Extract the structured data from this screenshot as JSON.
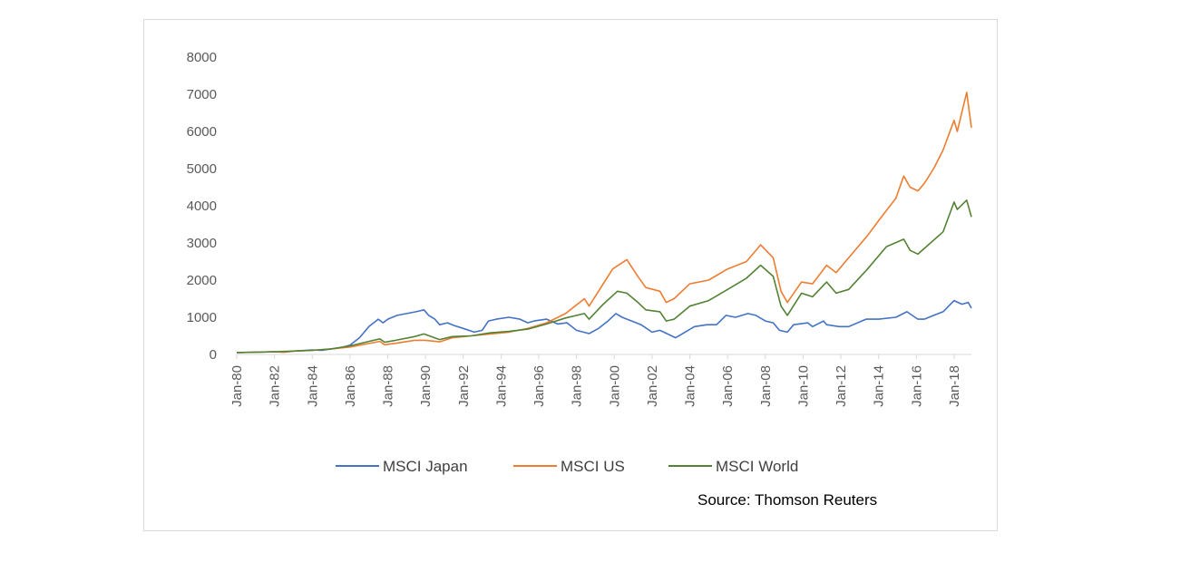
{
  "chart_data": {
    "type": "line",
    "title": "",
    "xlabel": "",
    "ylabel": "",
    "ylim": [
      0,
      8000
    ],
    "xlim": [
      "1980-01",
      "2018-12"
    ],
    "yticks": [
      0,
      1000,
      2000,
      3000,
      4000,
      5000,
      6000,
      7000,
      8000
    ],
    "ytick_labels": [
      "0",
      "1000",
      "2000",
      "3000",
      "4000",
      "5000",
      "6000",
      "7000",
      "8000"
    ],
    "xticks": [
      "1980-01",
      "1982-01",
      "1984-01",
      "1986-01",
      "1988-01",
      "1990-01",
      "1992-01",
      "1994-01",
      "1996-01",
      "1998-01",
      "2000-01",
      "2002-01",
      "2004-01",
      "2006-01",
      "2008-01",
      "2010-01",
      "2012-01",
      "2014-01",
      "2016-01",
      "2018-01"
    ],
    "xtick_labels": [
      "Jan-80",
      "Jan-82",
      "Jan-84",
      "Jan-86",
      "Jan-88",
      "Jan-90",
      "Jan-92",
      "Jan-94",
      "Jan-96",
      "Jan-98",
      "Jan-00",
      "Jan-02",
      "Jan-04",
      "Jan-06",
      "Jan-08",
      "Jan-10",
      "Jan-12",
      "Jan-14",
      "Jan-16",
      "Jan-18"
    ],
    "grid": false,
    "legend_position": "bottom",
    "source": "Source: Thomson Reuters",
    "series": [
      {
        "name": "MSCI Japan",
        "color": "#4472c4",
        "points": [
          [
            "1980-01",
            50
          ],
          [
            "1981-01",
            60
          ],
          [
            "1982-01",
            70
          ],
          [
            "1982-07",
            60
          ],
          [
            "1983-01",
            90
          ],
          [
            "1984-01",
            120
          ],
          [
            "1984-07",
            110
          ],
          [
            "1985-01",
            150
          ],
          [
            "1985-07",
            180
          ],
          [
            "1986-01",
            250
          ],
          [
            "1986-07",
            450
          ],
          [
            "1987-01",
            750
          ],
          [
            "1987-07",
            950
          ],
          [
            "1987-10",
            850
          ],
          [
            "1988-01",
            950
          ],
          [
            "1988-07",
            1050
          ],
          [
            "1989-01",
            1100
          ],
          [
            "1989-07",
            1150
          ],
          [
            "1989-12",
            1200
          ],
          [
            "1990-03",
            1050
          ],
          [
            "1990-07",
            950
          ],
          [
            "1990-10",
            800
          ],
          [
            "1991-03",
            850
          ],
          [
            "1991-07",
            780
          ],
          [
            "1992-01",
            700
          ],
          [
            "1992-08",
            600
          ],
          [
            "1993-01",
            650
          ],
          [
            "1993-05",
            900
          ],
          [
            "1993-10",
            950
          ],
          [
            "1994-06",
            1000
          ],
          [
            "1995-01",
            950
          ],
          [
            "1995-06",
            850
          ],
          [
            "1995-10",
            900
          ],
          [
            "1996-06",
            950
          ],
          [
            "1997-01",
            820
          ],
          [
            "1997-07",
            850
          ],
          [
            "1998-01",
            650
          ],
          [
            "1998-09",
            560
          ],
          [
            "1999-03",
            700
          ],
          [
            "1999-09",
            900
          ],
          [
            "2000-02",
            1100
          ],
          [
            "2000-06",
            1000
          ],
          [
            "2000-12",
            900
          ],
          [
            "2001-06",
            800
          ],
          [
            "2002-01",
            600
          ],
          [
            "2002-06",
            650
          ],
          [
            "2003-04",
            450
          ],
          [
            "2003-10",
            600
          ],
          [
            "2004-04",
            750
          ],
          [
            "2004-12",
            800
          ],
          [
            "2005-06",
            800
          ],
          [
            "2005-12",
            1050
          ],
          [
            "2006-06",
            1000
          ],
          [
            "2007-02",
            1100
          ],
          [
            "2007-07",
            1050
          ],
          [
            "2008-01",
            900
          ],
          [
            "2008-06",
            850
          ],
          [
            "2008-10",
            650
          ],
          [
            "2009-03",
            600
          ],
          [
            "2009-07",
            800
          ],
          [
            "2010-04",
            850
          ],
          [
            "2010-07",
            750
          ],
          [
            "2011-02",
            900
          ],
          [
            "2011-04",
            800
          ],
          [
            "2011-12",
            750
          ],
          [
            "2012-06",
            750
          ],
          [
            "2013-05",
            950
          ],
          [
            "2014-01",
            950
          ],
          [
            "2014-12",
            1000
          ],
          [
            "2015-07",
            1150
          ],
          [
            "2016-02",
            950
          ],
          [
            "2016-06",
            950
          ],
          [
            "2016-12",
            1050
          ],
          [
            "2017-06",
            1150
          ],
          [
            "2018-01",
            1450
          ],
          [
            "2018-06",
            1350
          ],
          [
            "2018-10",
            1400
          ],
          [
            "2018-12",
            1250
          ]
        ]
      },
      {
        "name": "MSCI US",
        "color": "#ed7d31",
        "points": [
          [
            "1980-01",
            50
          ],
          [
            "1981-01",
            60
          ],
          [
            "1982-01",
            70
          ],
          [
            "1982-08",
            60
          ],
          [
            "1983-01",
            90
          ],
          [
            "1984-01",
            110
          ],
          [
            "1985-01",
            150
          ],
          [
            "1986-01",
            200
          ],
          [
            "1987-08",
            350
          ],
          [
            "1987-11",
            260
          ],
          [
            "1988-06",
            300
          ],
          [
            "1989-06",
            380
          ],
          [
            "1990-01",
            380
          ],
          [
            "1990-10",
            340
          ],
          [
            "1991-06",
            450
          ],
          [
            "1992-06",
            500
          ],
          [
            "1993-06",
            550
          ],
          [
            "1994-06",
            600
          ],
          [
            "1995-06",
            700
          ],
          [
            "1996-06",
            850
          ],
          [
            "1997-06",
            1100
          ],
          [
            "1998-06",
            1500
          ],
          [
            "1998-09",
            1300
          ],
          [
            "1999-06",
            1900
          ],
          [
            "1999-12",
            2300
          ],
          [
            "2000-09",
            2550
          ],
          [
            "2001-04",
            2100
          ],
          [
            "2001-09",
            1800
          ],
          [
            "2002-06",
            1700
          ],
          [
            "2002-10",
            1400
          ],
          [
            "2003-03",
            1500
          ],
          [
            "2004-01",
            1900
          ],
          [
            "2005-01",
            2000
          ],
          [
            "2006-01",
            2300
          ],
          [
            "2007-01",
            2500
          ],
          [
            "2007-10",
            2950
          ],
          [
            "2008-06",
            2600
          ],
          [
            "2008-11",
            1700
          ],
          [
            "2009-03",
            1400
          ],
          [
            "2009-12",
            1950
          ],
          [
            "2010-07",
            1900
          ],
          [
            "2011-04",
            2400
          ],
          [
            "2011-10",
            2200
          ],
          [
            "2012-06",
            2600
          ],
          [
            "2013-06",
            3200
          ],
          [
            "2014-01",
            3600
          ],
          [
            "2014-12",
            4200
          ],
          [
            "2015-05",
            4800
          ],
          [
            "2015-09",
            4500
          ],
          [
            "2016-02",
            4400
          ],
          [
            "2016-06",
            4600
          ],
          [
            "2016-12",
            5000
          ],
          [
            "2017-06",
            5500
          ],
          [
            "2018-01",
            6300
          ],
          [
            "2018-03",
            6000
          ],
          [
            "2018-09",
            7050
          ],
          [
            "2018-12",
            6100
          ]
        ]
      },
      {
        "name": "MSCI World",
        "color": "#548235",
        "points": [
          [
            "1980-01",
            50
          ],
          [
            "1981-01",
            60
          ],
          [
            "1982-01",
            70
          ],
          [
            "1983-01",
            90
          ],
          [
            "1984-01",
            110
          ],
          [
            "1985-01",
            150
          ],
          [
            "1986-01",
            230
          ],
          [
            "1987-01",
            350
          ],
          [
            "1987-08",
            420
          ],
          [
            "1987-11",
            330
          ],
          [
            "1988-06",
            380
          ],
          [
            "1989-06",
            480
          ],
          [
            "1989-12",
            550
          ],
          [
            "1990-10",
            400
          ],
          [
            "1991-06",
            480
          ],
          [
            "1992-06",
            500
          ],
          [
            "1993-06",
            580
          ],
          [
            "1994-06",
            620
          ],
          [
            "1995-06",
            680
          ],
          [
            "1996-06",
            820
          ],
          [
            "1997-06",
            980
          ],
          [
            "1998-06",
            1100
          ],
          [
            "1998-09",
            950
          ],
          [
            "1999-06",
            1350
          ],
          [
            "2000-03",
            1700
          ],
          [
            "2000-09",
            1650
          ],
          [
            "2001-04",
            1400
          ],
          [
            "2001-09",
            1200
          ],
          [
            "2002-06",
            1150
          ],
          [
            "2002-10",
            900
          ],
          [
            "2003-03",
            950
          ],
          [
            "2004-01",
            1300
          ],
          [
            "2005-01",
            1450
          ],
          [
            "2006-01",
            1750
          ],
          [
            "2007-01",
            2050
          ],
          [
            "2007-10",
            2400
          ],
          [
            "2008-06",
            2100
          ],
          [
            "2008-11",
            1300
          ],
          [
            "2009-03",
            1050
          ],
          [
            "2009-12",
            1650
          ],
          [
            "2010-07",
            1550
          ],
          [
            "2011-04",
            1950
          ],
          [
            "2011-10",
            1650
          ],
          [
            "2012-06",
            1750
          ],
          [
            "2013-06",
            2300
          ],
          [
            "2014-06",
            2900
          ],
          [
            "2015-05",
            3100
          ],
          [
            "2015-09",
            2800
          ],
          [
            "2016-02",
            2700
          ],
          [
            "2016-06",
            2850
          ],
          [
            "2017-06",
            3300
          ],
          [
            "2018-01",
            4100
          ],
          [
            "2018-03",
            3900
          ],
          [
            "2018-09",
            4150
          ],
          [
            "2018-12",
            3700
          ]
        ]
      }
    ]
  }
}
